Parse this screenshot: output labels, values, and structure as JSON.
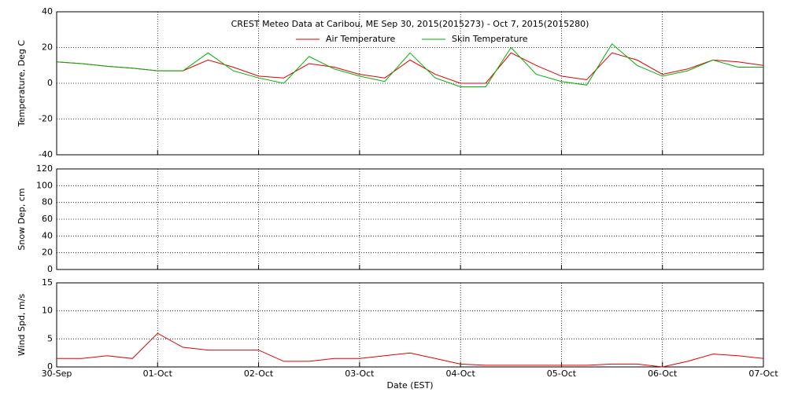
{
  "chart_data": [
    {
      "type": "line",
      "title": "CREST Meteo Data at Caribou, ME   Sep 30, 2015(2015273) - Oct  7, 2015(2015280)",
      "ylabel": "Temperature, Deg C",
      "x": [
        0,
        0.25,
        0.5,
        0.75,
        1,
        1.25,
        1.5,
        1.75,
        2,
        2.25,
        2.5,
        2.75,
        3,
        3.25,
        3.5,
        3.75,
        4,
        4.25,
        4.5,
        4.75,
        5,
        5.25,
        5.5,
        5.75,
        6,
        6.25,
        6.5,
        6.75,
        7
      ],
      "series": [
        {
          "name": "Air Temperature",
          "color": "#e00000",
          "values": [
            12,
            11,
            9.5,
            8.5,
            7,
            7,
            13,
            9,
            4,
            3,
            11,
            9,
            5,
            3,
            13,
            5,
            0,
            0,
            17,
            10,
            4,
            2,
            17,
            13,
            5,
            8,
            13,
            12,
            10
          ]
        },
        {
          "name": "Skin Temperature",
          "color": "#00b000",
          "values": [
            12,
            11,
            9.5,
            8.5,
            7,
            7,
            17,
            7,
            3,
            0,
            15,
            8,
            4,
            1,
            17,
            3,
            -2,
            -2,
            20,
            5,
            1,
            -1,
            22,
            10,
            4,
            7,
            13,
            9,
            9
          ]
        }
      ],
      "xlim": [
        0,
        7
      ],
      "xticks": [
        0,
        1,
        2,
        3,
        4,
        5,
        6,
        7
      ],
      "ylim": [
        -40,
        40
      ],
      "yticks": [
        -40,
        -20,
        0,
        20,
        40
      ],
      "grid": true,
      "legend": "upper center"
    },
    {
      "type": "line",
      "ylabel": "Snow Dep, cm",
      "xlim": [
        0,
        7
      ],
      "xticks": [
        0,
        1,
        2,
        3,
        4,
        5,
        6,
        7
      ],
      "ylim": [
        0,
        120
      ],
      "yticks": [
        0,
        20,
        40,
        60,
        80,
        100,
        120
      ],
      "grid": true
    },
    {
      "type": "line",
      "ylabel": "Wind Spd, m/s",
      "xlabel": "Date (EST)",
      "x": [
        0,
        0.25,
        0.5,
        0.75,
        1,
        1.25,
        1.5,
        1.75,
        2,
        2.25,
        2.5,
        2.75,
        3,
        3.25,
        3.5,
        3.75,
        4,
        4.25,
        4.5,
        4.75,
        5,
        5.25,
        5.5,
        5.75,
        6,
        6.25,
        6.5,
        6.75,
        7
      ],
      "series": [
        {
          "name": "Wind Speed",
          "color": "#e00000",
          "values": [
            1.5,
            1.5,
            2,
            1.5,
            6,
            3.5,
            3,
            3,
            3,
            1,
            1,
            1.5,
            1.5,
            2,
            2.5,
            1.5,
            0.5,
            0.3,
            0.3,
            0.3,
            0.3,
            0.3,
            0.5,
            0.5,
            0,
            1,
            2.3,
            2,
            1.5
          ]
        }
      ],
      "xlim": [
        0,
        7
      ],
      "xticks": [
        {
          "value": 0,
          "label": "30-Sep"
        },
        {
          "value": 1,
          "label": "01-Oct"
        },
        {
          "value": 2,
          "label": "02-Oct"
        },
        {
          "value": 3,
          "label": "03-Oct"
        },
        {
          "value": 4,
          "label": "04-Oct"
        },
        {
          "value": 5,
          "label": "05-Oct"
        },
        {
          "value": 6,
          "label": "06-Oct"
        },
        {
          "value": 7,
          "label": "07-Oct"
        }
      ],
      "ylim": [
        0,
        15
      ],
      "yticks": [
        0,
        5,
        10,
        15
      ],
      "grid": true
    }
  ]
}
